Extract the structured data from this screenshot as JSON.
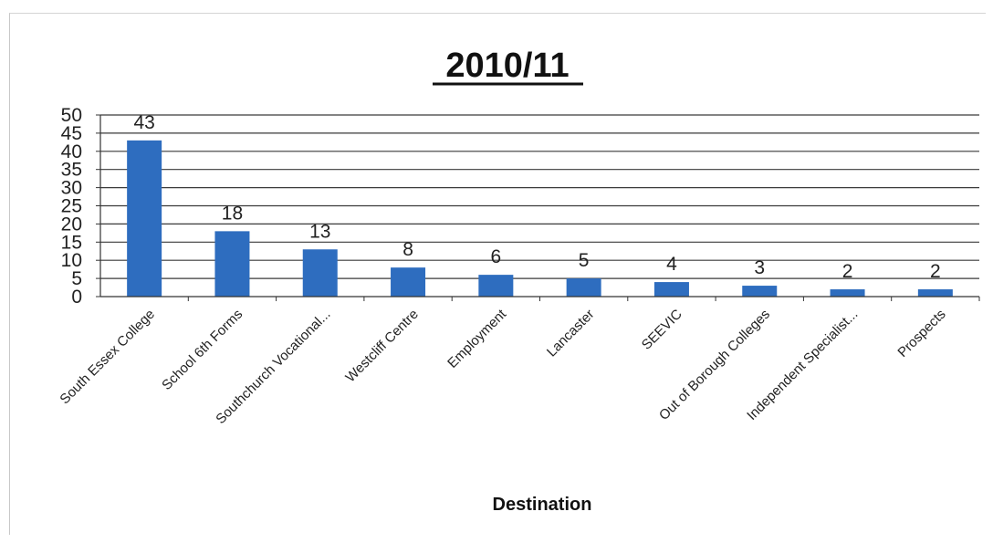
{
  "chart_data": {
    "type": "bar",
    "title": "2010/11",
    "xlabel": "Destination",
    "ylabel": "",
    "categories": [
      "South Essex College",
      "School 6th Forms",
      "Southchurch Vocational...",
      "Westcliff Centre",
      "Employment",
      "Lancaster",
      "SEEVIC",
      "Out of Borough Colleges",
      "Independent Specialist...",
      "Prospects"
    ],
    "values": [
      43,
      18,
      13,
      8,
      6,
      5,
      4,
      3,
      2,
      2
    ],
    "data_labels": [
      "43",
      "18",
      "13",
      "8",
      "6",
      "5",
      "4",
      "3",
      "2",
      "2"
    ],
    "ylim": [
      0,
      50
    ],
    "yticks": [
      "0",
      "5",
      "10",
      "15",
      "20",
      "25",
      "30",
      "35",
      "40",
      "45",
      "50"
    ],
    "grid": true,
    "legend": "none",
    "bar_color": "#2e6dbf",
    "gridline_color": "#3a3a3a"
  }
}
